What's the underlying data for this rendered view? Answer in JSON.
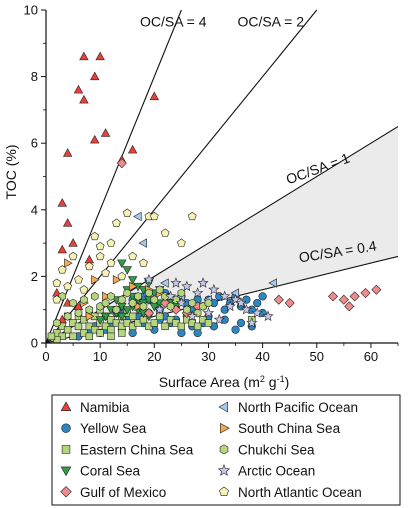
{
  "chart_data": {
    "type": "scatter",
    "xlabel": "Surface Area (m² g⁻¹)",
    "xlabel_main": "Surface Area (m",
    "xlabel_sup1": "2",
    "xlabel_mid": " g",
    "xlabel_sup2": "-1",
    "xlabel_end": ")",
    "ylabel": "TOC (%)",
    "xlim": [
      0,
      65
    ],
    "ylim": [
      0,
      10
    ],
    "xticks": [
      "0",
      "10",
      "20",
      "30",
      "40",
      "50",
      "60"
    ],
    "yticks": [
      "0",
      "2",
      "4",
      "6",
      "8",
      "10"
    ],
    "grid": false,
    "legend_position": "bottom",
    "reference_lines": [
      {
        "label": "OC/SA = 4",
        "slope": 0.4,
        "x_end": 25.0
      },
      {
        "label": "OC/SA = 2",
        "slope": 0.2,
        "x_end": 50.0
      },
      {
        "label": "OC/SA = 1",
        "slope": 0.1,
        "x_end": 65.0
      },
      {
        "label": "OC/SA = 0.4",
        "slope": 0.04,
        "x_end": 65.0
      }
    ],
    "shaded_region": "between OC/SA = 0.4 and OC/SA = 1",
    "series": [
      {
        "name": "Namibia",
        "marker": "triangle-up",
        "color": "#e8413a",
        "points": [
          [
            7,
            8.6
          ],
          [
            10,
            8.6
          ],
          [
            6,
            7.6
          ],
          [
            9,
            8.0
          ],
          [
            7,
            7.3
          ],
          [
            20,
            7.4
          ],
          [
            11,
            6.3
          ],
          [
            9,
            6.1
          ],
          [
            16,
            5.8
          ],
          [
            4,
            5.7
          ],
          [
            14,
            5.5
          ],
          [
            3,
            4.2
          ],
          [
            4,
            3.6
          ],
          [
            3,
            2.8
          ],
          [
            5,
            3.0
          ],
          [
            8,
            2.5
          ],
          [
            2,
            1.5
          ],
          [
            4,
            1.2
          ],
          [
            6,
            1.1
          ],
          [
            3,
            0.7
          ]
        ]
      },
      {
        "name": "Yellow Sea",
        "marker": "circle",
        "color": "#2e86c1",
        "points": [
          [
            16,
            1.3
          ],
          [
            17,
            1.1
          ],
          [
            18,
            1.4
          ],
          [
            19,
            1.3
          ],
          [
            20,
            1.2
          ],
          [
            21,
            1.0
          ],
          [
            22,
            1.5
          ],
          [
            23,
            1.3
          ],
          [
            24,
            1.1
          ],
          [
            25,
            1.4
          ],
          [
            26,
            1.2
          ],
          [
            27,
            1.0
          ],
          [
            28,
            1.3
          ],
          [
            29,
            1.1
          ],
          [
            30,
            1.3
          ],
          [
            31,
            1.2
          ],
          [
            32,
            1.4
          ],
          [
            33,
            1.0
          ],
          [
            34,
            1.2
          ],
          [
            35,
            1.4
          ],
          [
            36,
            1.1
          ],
          [
            37,
            1.3
          ],
          [
            38,
            1.0
          ],
          [
            39,
            1.2
          ],
          [
            40,
            1.4
          ],
          [
            13,
            0.9
          ],
          [
            14,
            1.0
          ],
          [
            15,
            0.7
          ],
          [
            17,
            0.8
          ],
          [
            18,
            0.6
          ],
          [
            19,
            0.9
          ],
          [
            21,
            0.7
          ],
          [
            22,
            0.8
          ],
          [
            23,
            0.6
          ],
          [
            24,
            0.7
          ],
          [
            26,
            0.8
          ],
          [
            27,
            0.5
          ],
          [
            29,
            0.6
          ],
          [
            30,
            0.8
          ],
          [
            31,
            0.5
          ],
          [
            33,
            0.7
          ],
          [
            36,
            0.6
          ],
          [
            38,
            0.5
          ],
          [
            40,
            0.9
          ],
          [
            12,
            0.6
          ],
          [
            11,
            0.4
          ],
          [
            9,
            0.5
          ],
          [
            10,
            0.3
          ],
          [
            14,
            0.4
          ],
          [
            16,
            0.3
          ],
          [
            20,
            0.4
          ],
          [
            25,
            0.3
          ],
          [
            28,
            0.3
          ],
          [
            35,
            0.4
          ],
          [
            6,
            0.2
          ],
          [
            8,
            0.3
          ]
        ]
      },
      {
        "name": "Eastern China Sea",
        "marker": "square",
        "color": "#b5d67c",
        "points": [
          [
            2,
            0.3
          ],
          [
            3,
            0.5
          ],
          [
            4,
            0.4
          ],
          [
            5,
            0.6
          ],
          [
            5,
            0.2
          ],
          [
            6,
            0.5
          ],
          [
            6,
            0.8
          ],
          [
            7,
            0.3
          ],
          [
            7,
            0.7
          ],
          [
            8,
            0.5
          ],
          [
            8,
            0.9
          ],
          [
            9,
            0.4
          ],
          [
            9,
            0.8
          ],
          [
            10,
            0.6
          ],
          [
            10,
            1.0
          ],
          [
            11,
            0.5
          ],
          [
            11,
            0.8
          ],
          [
            12,
            0.4
          ],
          [
            12,
            0.7
          ],
          [
            13,
            0.6
          ],
          [
            13,
            1.0
          ],
          [
            14,
            0.5
          ],
          [
            14,
            0.8
          ],
          [
            15,
            0.6
          ],
          [
            15,
            0.9
          ],
          [
            16,
            0.5
          ],
          [
            16,
            0.8
          ],
          [
            17,
            0.6
          ],
          [
            18,
            0.7
          ],
          [
            19,
            0.5
          ],
          [
            20,
            0.6
          ],
          [
            21,
            0.8
          ],
          [
            22,
            0.5
          ],
          [
            23,
            0.7
          ],
          [
            24,
            0.6
          ],
          [
            25,
            0.5
          ],
          [
            26,
            0.7
          ],
          [
            27,
            0.6
          ],
          [
            28,
            0.5
          ],
          [
            29,
            0.7
          ],
          [
            30,
            0.6
          ],
          [
            4,
            0.8
          ],
          [
            3,
            0.2
          ],
          [
            2,
            0.1
          ],
          [
            1,
            0.2
          ],
          [
            8,
            0.2
          ],
          [
            10,
            0.3
          ],
          [
            12,
            0.2
          ],
          [
            14,
            0.3
          ],
          [
            38,
            0.7
          ]
        ]
      },
      {
        "name": "Coral Sea",
        "marker": "triangle-down",
        "color": "#2f9e44",
        "points": [
          [
            14,
            2.4
          ],
          [
            15,
            2.2
          ],
          [
            16,
            1.9
          ],
          [
            17,
            1.7
          ],
          [
            18,
            1.6
          ],
          [
            19,
            1.8
          ],
          [
            20,
            1.5
          ],
          [
            21,
            1.6
          ],
          [
            22,
            1.4
          ],
          [
            15,
            1.6
          ],
          [
            16,
            1.4
          ],
          [
            17,
            1.3
          ],
          [
            18,
            1.2
          ],
          [
            19,
            1.3
          ],
          [
            20,
            1.1
          ],
          [
            21,
            1.2
          ],
          [
            13,
            1.3
          ],
          [
            14,
            1.1
          ],
          [
            15,
            1.0
          ],
          [
            16,
            1.1
          ],
          [
            12,
            1.0
          ],
          [
            13,
            0.9
          ],
          [
            14,
            0.8
          ],
          [
            17,
            1.0
          ],
          [
            18,
            0.9
          ],
          [
            19,
            0.8
          ],
          [
            23,
            1.2
          ],
          [
            24,
            1.1
          ],
          [
            11,
            0.8
          ],
          [
            10,
            0.7
          ]
        ]
      },
      {
        "name": "Gulf of Mexico",
        "marker": "diamond",
        "color": "#f08b8b",
        "points": [
          [
            14,
            5.4
          ],
          [
            43,
            1.3
          ],
          [
            45,
            1.2
          ],
          [
            53,
            1.4
          ],
          [
            55,
            1.3
          ],
          [
            56,
            1.1
          ],
          [
            57,
            1.4
          ],
          [
            59,
            1.5
          ],
          [
            61,
            1.6
          ],
          [
            22,
            1.2
          ],
          [
            24,
            1.0
          ],
          [
            26,
            0.9
          ],
          [
            28,
            1.1
          ],
          [
            19,
            0.9
          ]
        ]
      },
      {
        "name": "North Pacific Ocean",
        "marker": "triangle-left",
        "color": "#a8c8f0",
        "points": [
          [
            17,
            3.8
          ],
          [
            18,
            3.0
          ],
          [
            22,
            1.8
          ],
          [
            42,
            1.8
          ],
          [
            25,
            1.4
          ],
          [
            30,
            1.3
          ],
          [
            35,
            1.5
          ]
        ]
      },
      {
        "name": "South China Sea",
        "marker": "triangle-right",
        "color": "#f5a953",
        "points": [
          [
            4,
            2.4
          ],
          [
            9,
            1.9
          ],
          [
            13,
            1.9
          ],
          [
            16,
            1.7
          ],
          [
            19,
            1.6
          ],
          [
            11,
            1.4
          ],
          [
            7,
            1.2
          ],
          [
            21,
            1.5
          ],
          [
            17,
            1.1
          ],
          [
            8,
            0.8
          ]
        ]
      },
      {
        "name": "Chukchi Sea",
        "marker": "hexagon",
        "color": "#b5d67c",
        "points": [
          [
            3,
            1.4
          ],
          [
            5,
            1.2
          ],
          [
            7,
            1.3
          ],
          [
            8,
            1.0
          ],
          [
            9,
            1.4
          ],
          [
            10,
            1.1
          ],
          [
            11,
            1.2
          ],
          [
            12,
            1.4
          ],
          [
            13,
            1.0
          ],
          [
            14,
            1.3
          ],
          [
            15,
            1.5
          ],
          [
            16,
            1.2
          ],
          [
            17,
            1.4
          ],
          [
            18,
            1.1
          ],
          [
            19,
            1.5
          ],
          [
            20,
            1.3
          ],
          [
            21,
            1.6
          ],
          [
            22,
            1.4
          ],
          [
            23,
            1.1
          ],
          [
            24,
            1.3
          ],
          [
            25,
            1.5
          ],
          [
            26,
            1.0
          ],
          [
            27,
            1.2
          ],
          [
            28,
            0.9
          ],
          [
            29,
            1.1
          ],
          [
            30,
            1.2
          ],
          [
            6,
            0.9
          ],
          [
            4,
            0.8
          ],
          [
            2,
            0.6
          ]
        ]
      },
      {
        "name": "Arctic Ocean",
        "marker": "star",
        "color": "#c6c8ea",
        "points": [
          [
            19,
            1.9
          ],
          [
            24,
            1.8
          ],
          [
            26,
            1.7
          ],
          [
            29,
            1.8
          ],
          [
            31,
            1.6
          ],
          [
            33,
            1.4
          ],
          [
            35,
            1.3
          ],
          [
            37,
            1.0
          ],
          [
            39,
            0.9
          ],
          [
            41,
            0.8
          ],
          [
            28,
            1.5
          ],
          [
            30,
            0.9
          ],
          [
            32,
            0.7
          ],
          [
            34,
            1.1
          ],
          [
            36,
            1.2
          ],
          [
            38,
            0.6
          ],
          [
            27,
            0.8
          ],
          [
            25,
            1.2
          ],
          [
            23,
            1.4
          ],
          [
            21,
            1.0
          ]
        ]
      },
      {
        "name": "North Atlantic Ocean",
        "marker": "pentagon",
        "color": "#f6f2b4",
        "points": [
          [
            15,
            3.9
          ],
          [
            19,
            3.8
          ],
          [
            20,
            3.8
          ],
          [
            13,
            3.6
          ],
          [
            9,
            3.2
          ],
          [
            12,
            3.0
          ],
          [
            10,
            2.9
          ],
          [
            25,
            3.0
          ],
          [
            27,
            3.8
          ],
          [
            22,
            3.3
          ],
          [
            10,
            2.6
          ],
          [
            5,
            2.6
          ],
          [
            3,
            2.2
          ],
          [
            6,
            1.9
          ],
          [
            8,
            2.3
          ],
          [
            11,
            2.1
          ],
          [
            2,
            1.8
          ],
          [
            14,
            2.0
          ],
          [
            16,
            2.6
          ],
          [
            4,
            1.7
          ],
          [
            2,
            1.3
          ],
          [
            7,
            1.6
          ],
          [
            18,
            2.4
          ],
          [
            12,
            2.4
          ]
        ]
      }
    ]
  }
}
